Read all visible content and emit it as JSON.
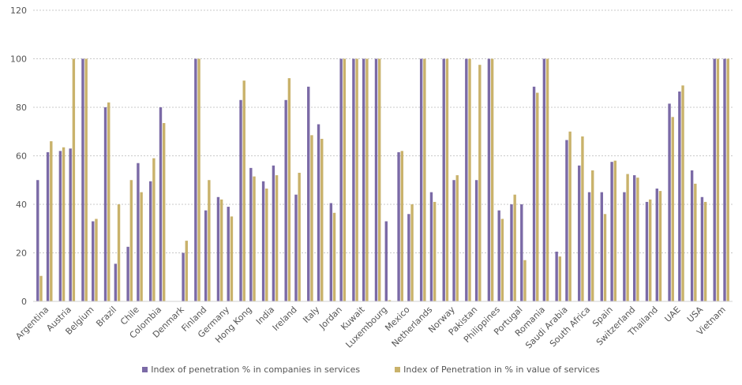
{
  "chart_data": {
    "type": "bar",
    "categories": [
      "Argentina",
      "Austria",
      "Belgium",
      "Brazil",
      "Chile",
      "Colombia",
      "Denmark",
      "Finland",
      "Germany",
      "Hong Kong",
      "India",
      "Ireland",
      "Italy",
      "Jordan",
      "Kuwait",
      "Luxembourg",
      "Mexico",
      "Netherlands",
      "Norway",
      "Pakistan",
      "Philippines",
      "Portugal",
      "Romania",
      "Saudi Arabia",
      "South Africa",
      "Spain",
      "Switzerland",
      "Thailand",
      "UAE",
      "USA",
      "Vietnam"
    ],
    "series": [
      {
        "name": "Index of penetration % in companies in services",
        "color": "#7b6aa6",
        "values": [
          [
            50,
            61.5
          ],
          [
            62,
            63
          ],
          [
            100,
            33
          ],
          [
            80,
            15.5
          ],
          [
            22.5,
            57
          ],
          [
            49.5,
            80
          ],
          [
            0,
            20
          ],
          [
            100,
            37.5
          ],
          [
            43,
            39
          ],
          [
            83,
            55
          ],
          [
            49.5,
            56
          ],
          [
            83,
            44
          ],
          [
            88.5,
            73
          ],
          [
            40.5,
            100
          ],
          [
            100,
            100
          ],
          [
            100,
            33
          ],
          [
            61.5,
            36
          ],
          [
            100,
            45
          ],
          [
            100,
            50
          ],
          [
            100,
            50
          ],
          [
            100,
            37.5
          ],
          [
            40,
            40
          ],
          [
            88.5,
            100
          ],
          [
            20.5,
            66.5
          ],
          [
            56,
            45
          ],
          [
            45,
            57.5
          ],
          [
            45,
            52
          ],
          [
            41,
            46.5
          ],
          [
            81.5,
            86.5
          ],
          [
            54,
            43
          ],
          [
            100,
            100
          ]
        ]
      },
      {
        "name": "Index of Penetration in % in value of services",
        "color": "#c9b26b",
        "values": [
          [
            10.5,
            66
          ],
          [
            63.5,
            100
          ],
          [
            100,
            34
          ],
          [
            82,
            40
          ],
          [
            50,
            45
          ],
          [
            59,
            73.5
          ],
          [
            0,
            25
          ],
          [
            100,
            50
          ],
          [
            42,
            35
          ],
          [
            91,
            51.5
          ],
          [
            46.5,
            52
          ],
          [
            92,
            53
          ],
          [
            68.5,
            67
          ],
          [
            36.5,
            100
          ],
          [
            100,
            100
          ],
          [
            100,
            0.5
          ],
          [
            62,
            40
          ],
          [
            100,
            41
          ],
          [
            100,
            52
          ],
          [
            100,
            97.5
          ],
          [
            100,
            34
          ],
          [
            44,
            17
          ],
          [
            86,
            100
          ],
          [
            18.5,
            70
          ],
          [
            68,
            54
          ],
          [
            36,
            58
          ],
          [
            52.5,
            51
          ],
          [
            42,
            45.5
          ],
          [
            76,
            89
          ],
          [
            48.5,
            41
          ],
          [
            100,
            100
          ]
        ]
      }
    ],
    "ylim": [
      0,
      120
    ],
    "yticks": [
      0,
      20,
      40,
      60,
      80,
      100,
      120
    ],
    "grid": true,
    "legend_position": "bottom"
  }
}
